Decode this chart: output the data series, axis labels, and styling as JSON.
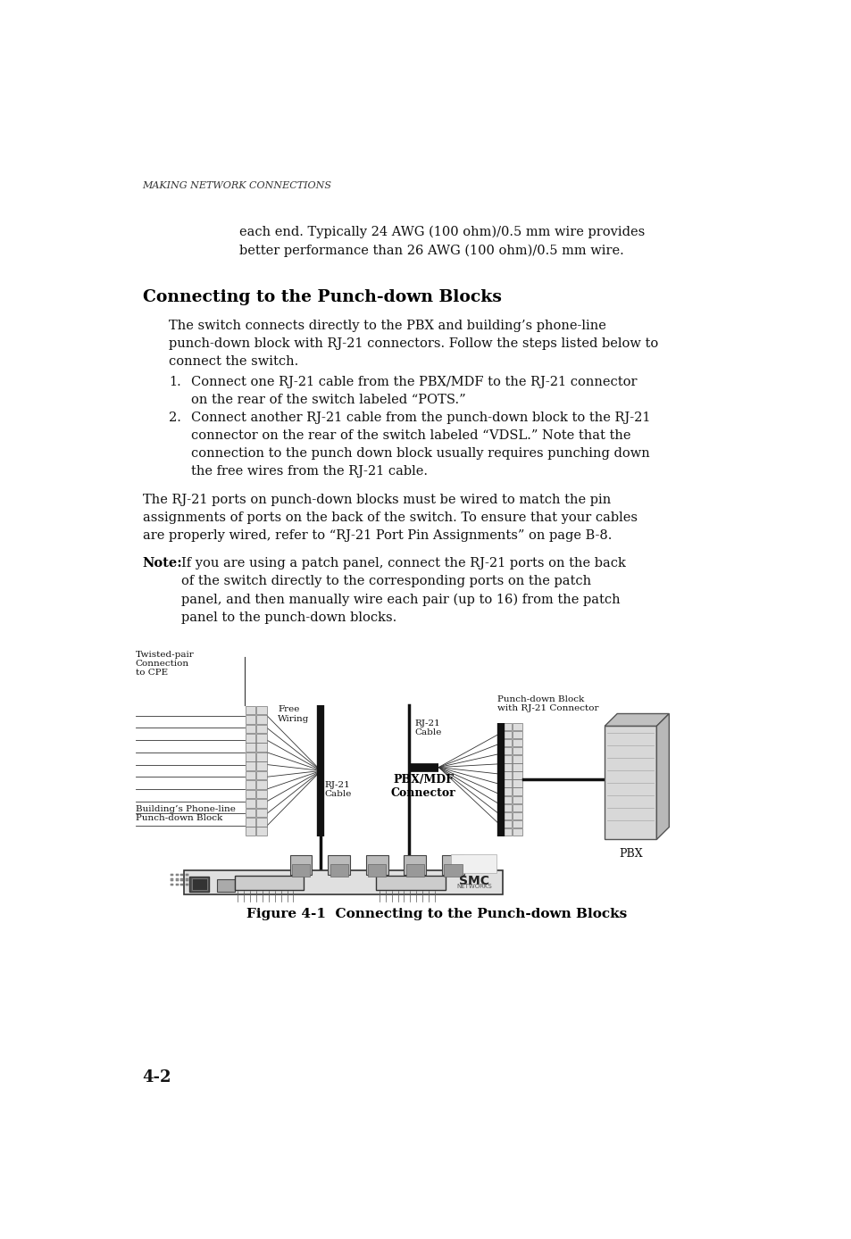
{
  "bg_color": "#ffffff",
  "header_text": "MAKING NETWORK CONNECTIONS",
  "page_number": "4-2",
  "intro_text": "each end. Typically 24 AWG (100 ohm)/0.5 mm wire provides\nbetter performance than 26 AWG (100 ohm)/0.5 mm wire.",
  "section_title": "Connecting to the Punch-down Blocks",
  "para1": "The switch connects directly to the PBX and building’s phone-line\npunch-down block with RJ-21 connectors. Follow the steps listed below to\nconnect the switch.",
  "step1": "Connect one RJ-21 cable from the PBX/MDF to the RJ-21 connector\non the rear of the switch labeled “POTS.”",
  "step2": "Connect another RJ-21 cable from the punch-down block to the RJ-21\nconnector on the rear of the switch labeled “VDSL.” Note that the\nconnection to the punch down block usually requires punching down\nthe free wires from the RJ-21 cable.",
  "para2": "The RJ-21 ports on punch-down blocks must be wired to match the pin\nassignments of ports on the back of the switch. To ensure that your cables\nare properly wired, refer to “RJ-21 Port Pin Assignments” on page B-8.",
  "note_label": "Note:",
  "note_text": "If you are using a patch panel, connect the RJ-21 ports on the back\nof the switch directly to the corresponding ports on the patch\npanel, and then manually wire each pair (up to 16) from the patch\npanel to the punch-down blocks.",
  "figure_caption": "Figure 4-1  Connecting to the Punch-down Blocks",
  "label_twisted_pair": "Twisted-pair\nConnection\nto CPE",
  "label_free_wiring": "Free\nWiring",
  "label_rj21_cable_left": "RJ-21\nCable",
  "label_rj21_cable_right": "RJ-21\nCable",
  "label_pbx_mdf": "PBX/MDF\nConnector",
  "label_punch_down": "Punch-down Block\nwith RJ-21 Connector",
  "label_pbx": "PBX",
  "label_phone_line": "Building’s Phone-line\nPunch-down Block"
}
